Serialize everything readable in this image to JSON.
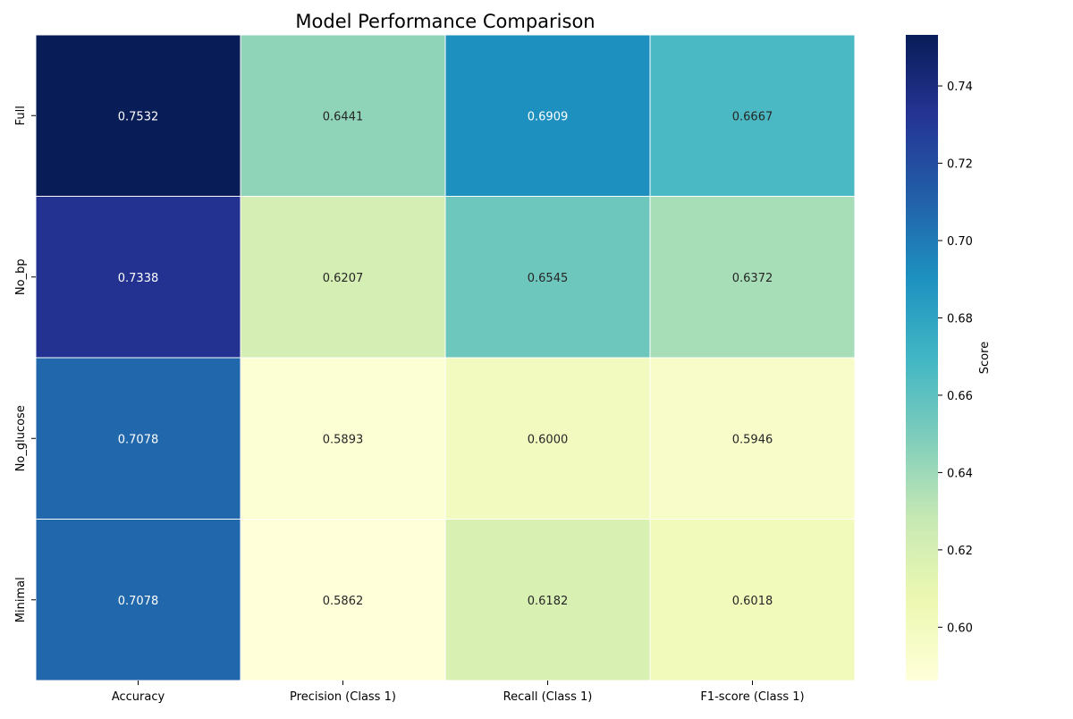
{
  "chart_data": {
    "type": "heatmap",
    "title": "Model Performance Comparison",
    "xlabel": "",
    "ylabel": "",
    "columns": [
      "Accuracy",
      "Precision (Class 1)",
      "Recall (Class 1)",
      "F1-score (Class 1)"
    ],
    "rows": [
      "Full",
      "No_bp",
      "No_glucose",
      "Minimal"
    ],
    "values": [
      [
        0.7532,
        0.6441,
        0.6909,
        0.6667
      ],
      [
        0.7338,
        0.6207,
        0.6545,
        0.6372
      ],
      [
        0.7078,
        0.5893,
        0.6,
        0.5946
      ],
      [
        0.7078,
        0.5862,
        0.6182,
        0.6018
      ]
    ],
    "value_labels": [
      [
        "0.7532",
        "0.6441",
        "0.6909",
        "0.6667"
      ],
      [
        "0.7338",
        "0.6207",
        "0.6545",
        "0.6372"
      ],
      [
        "0.7078",
        "0.5893",
        "0.6000",
        "0.5946"
      ],
      [
        "0.7078",
        "0.5862",
        "0.6182",
        "0.6018"
      ]
    ],
    "colorbar": {
      "label": "Score",
      "range": [
        0.5862,
        0.7532
      ],
      "ticks": [
        0.6,
        0.62,
        0.64,
        0.66,
        0.68,
        0.7,
        0.72,
        0.74
      ],
      "tick_labels": [
        "0.60",
        "0.62",
        "0.64",
        "0.66",
        "0.68",
        "0.70",
        "0.72",
        "0.74"
      ],
      "colormap": "YlGnBu",
      "colormap_stops": [
        "#ffffd9",
        "#edf8b1",
        "#c7e9b4",
        "#7fcdbb",
        "#41b6c4",
        "#1d91c0",
        "#225ea8",
        "#253494",
        "#081d58"
      ]
    },
    "cell_border_color": "#ffffff",
    "text_color_dark": "#262626",
    "text_color_light": "#ffffff"
  }
}
